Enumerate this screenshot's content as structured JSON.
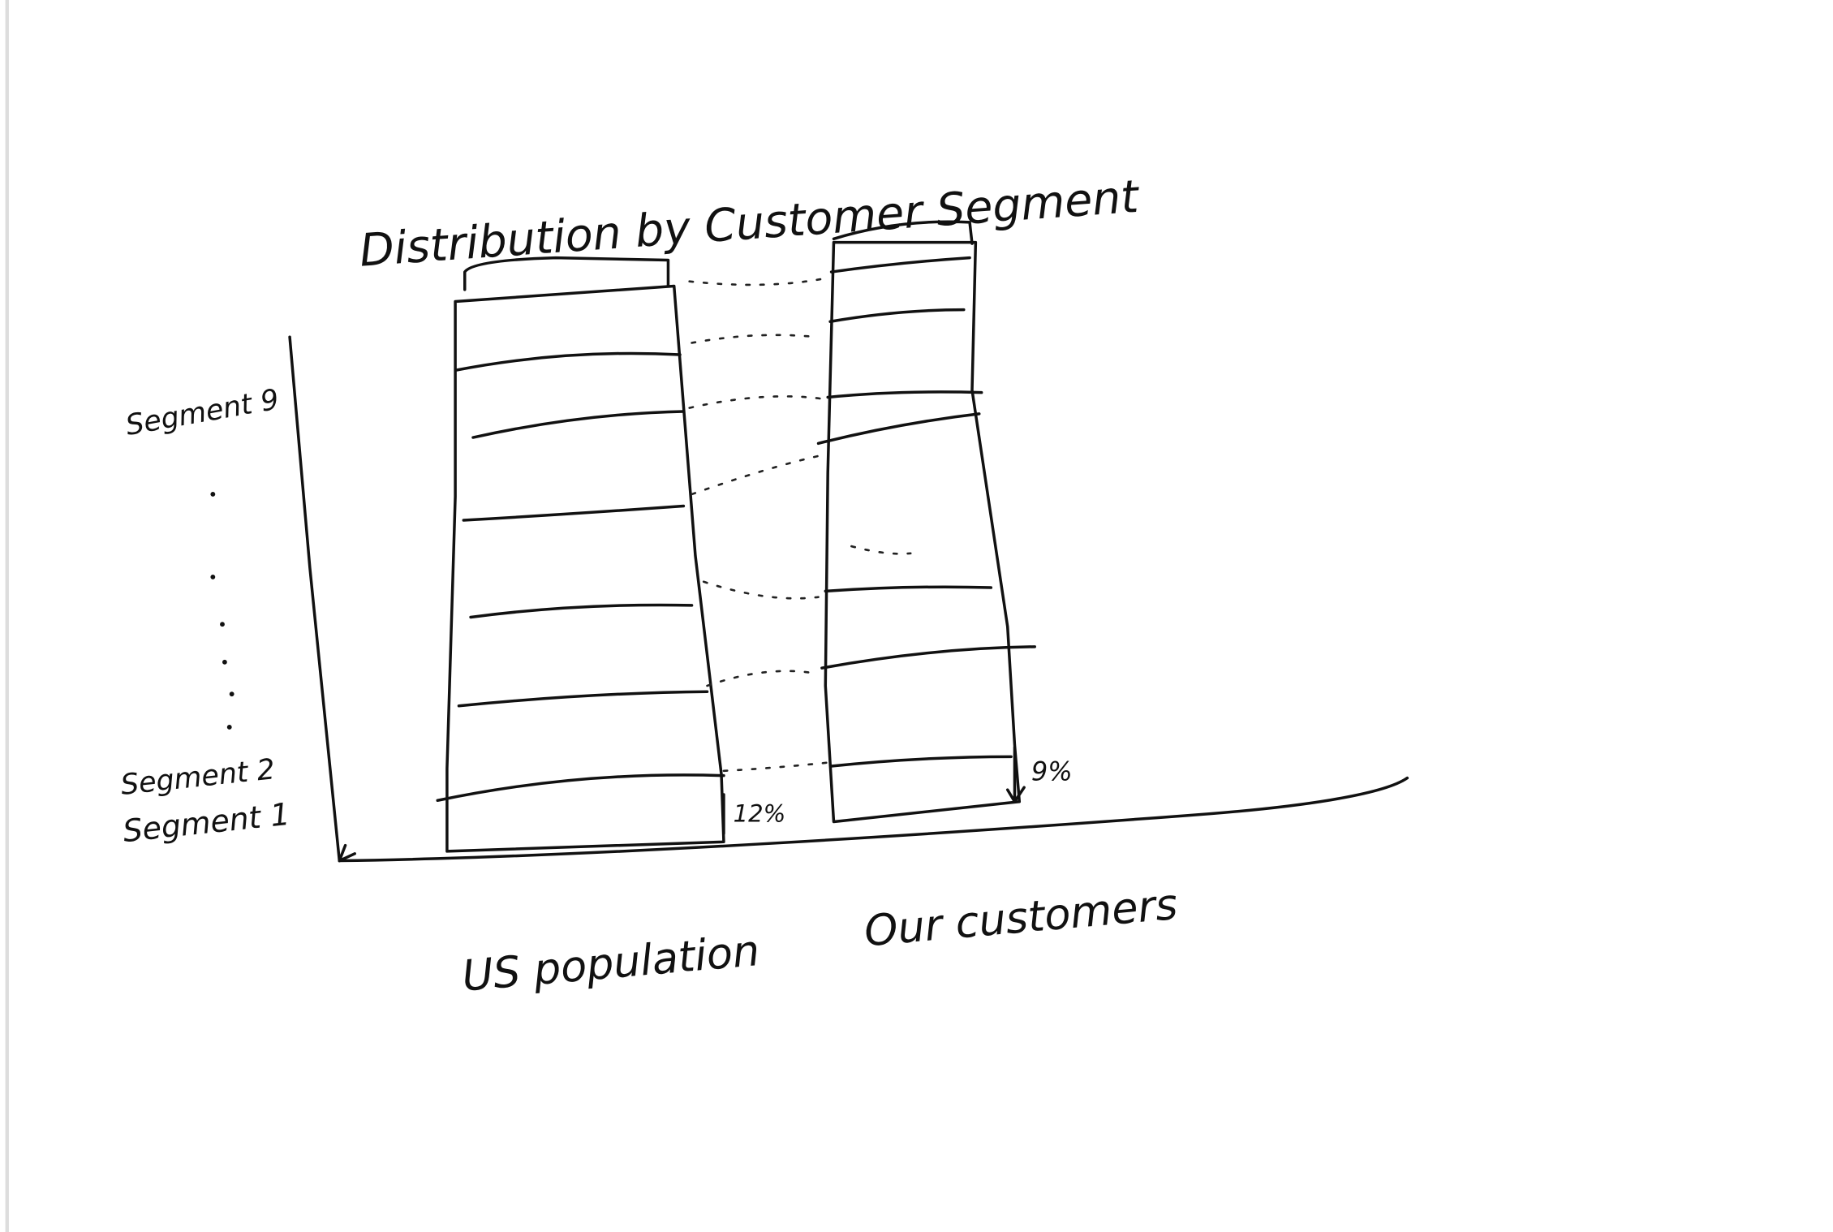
{
  "title": "Distribution by Customer Segment",
  "segment_labels": [
    "Segment 9",
    "Segment 2",
    "Segment 1"
  ],
  "columns": [
    {
      "label": "US population",
      "annotation": "12%"
    },
    {
      "label": "Our customers",
      "annotation": "9%"
    }
  ]
}
